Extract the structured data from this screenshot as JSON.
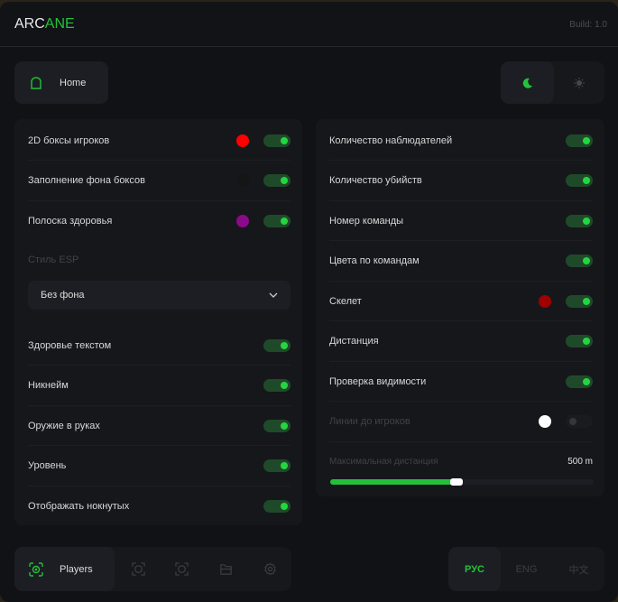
{
  "header": {
    "logo_a": "ARC",
    "logo_b": "ANE",
    "build": "Build: 1.0"
  },
  "top": {
    "home_label": "Home",
    "theme_dark": "moon-icon",
    "theme_light": "sun-icon"
  },
  "colors": {
    "accent": "#22c23a"
  },
  "left_rows": [
    {
      "label": "2D боксы игроков",
      "color": "#ff0000",
      "on": true
    },
    {
      "label": "Заполнение фона боксов",
      "color": "#151515",
      "on": true
    },
    {
      "label": "Полоска здоровья",
      "color": "#8a0a8a",
      "on": true
    }
  ],
  "esp_style": {
    "label": "Стиль ESP",
    "value": "Без фона"
  },
  "left_rows2": [
    {
      "label": "Здоровье текстом",
      "on": true
    },
    {
      "label": "Никнейм",
      "on": true
    },
    {
      "label": "Оружие в руках",
      "on": true
    },
    {
      "label": "Уровень",
      "on": true
    },
    {
      "label": "Отображать нокнутых",
      "on": true
    }
  ],
  "right_rows": [
    {
      "label": "Количество наблюдателей",
      "on": true
    },
    {
      "label": "Количество убийств",
      "on": true
    },
    {
      "label": "Номер команды",
      "on": true
    },
    {
      "label": "Цвета по командам",
      "on": true
    },
    {
      "label": "Скелет",
      "color": "#a00000",
      "on": true
    },
    {
      "label": "Дистанция",
      "on": true
    },
    {
      "label": "Проверка видимости",
      "on": true
    },
    {
      "label": "Линии до игроков",
      "color": "#ffffff",
      "on": false,
      "disabled": true
    }
  ],
  "max_distance": {
    "label": "Максимальная дистанция",
    "value": "500 m",
    "fraction": 0.48
  },
  "bottom_nav": {
    "active_label": "Players",
    "items": [
      "players-icon",
      "aim-icon",
      "target-icon",
      "folder-icon",
      "gear-icon"
    ]
  },
  "languages": [
    {
      "label": "РУС",
      "active": true
    },
    {
      "label": "ENG",
      "active": false
    },
    {
      "label": "中文",
      "active": false
    }
  ]
}
